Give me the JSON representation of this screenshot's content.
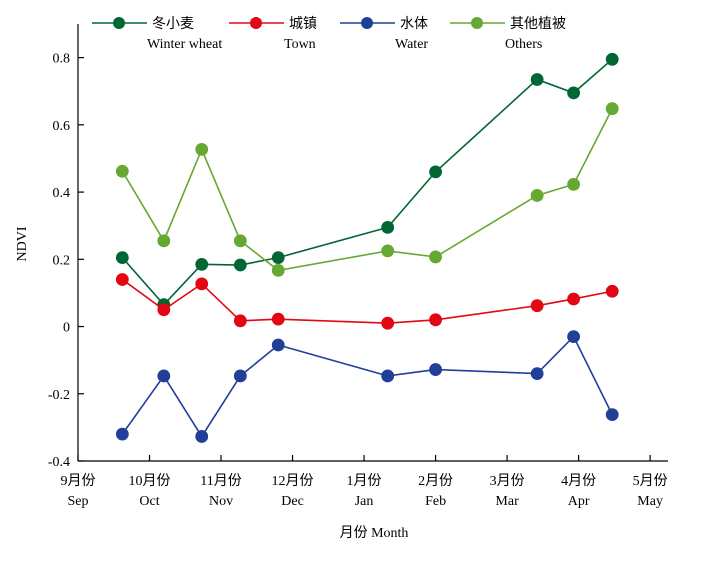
{
  "chart_data": {
    "type": "line",
    "xlabel": "月份 Month",
    "ylabel": "NDVI",
    "ylim": [
      -0.4,
      0.9
    ],
    "xlim": [
      0,
      8.25
    ],
    "yticks": [
      -0.4,
      -0.2,
      0,
      0.2,
      0.4,
      0.6,
      0.8
    ],
    "ytick_labels": [
      "-0.4",
      "-0.2",
      "0",
      "0.2",
      "0.4",
      "0.6",
      "0.8"
    ],
    "xticks": [
      {
        "value": 0,
        "cn": "9月份",
        "en": "Sep"
      },
      {
        "value": 1,
        "cn": "10月份",
        "en": "Oct"
      },
      {
        "value": 2,
        "cn": "11月份",
        "en": "Nov"
      },
      {
        "value": 3,
        "cn": "12月份",
        "en": "Dec"
      },
      {
        "value": 4,
        "cn": "1月份",
        "en": "Jan"
      },
      {
        "value": 5,
        "cn": "2月份",
        "en": "Feb"
      },
      {
        "value": 6,
        "cn": "3月份",
        "en": "Mar"
      },
      {
        "value": 7,
        "cn": "4月份",
        "en": "Apr"
      },
      {
        "value": 8,
        "cn": "5月份",
        "en": "May"
      }
    ],
    "x": [
      0.62,
      1.2,
      1.73,
      2.27,
      2.8,
      4.33,
      5.0,
      6.42,
      6.93,
      7.47
    ],
    "grid": false,
    "legend_position": "top",
    "series": [
      {
        "name_cn": "冬小麦",
        "name_en": "Winter wheat",
        "color": "#006633",
        "values": [
          0.205,
          0.065,
          0.185,
          0.183,
          0.205,
          0.295,
          0.46,
          0.735,
          0.695,
          0.795
        ]
      },
      {
        "name_cn": "城镇",
        "name_en": "Town",
        "color": "#e30613",
        "values": [
          0.14,
          0.05,
          0.127,
          0.017,
          0.022,
          0.01,
          0.02,
          0.062,
          0.082,
          0.105
        ]
      },
      {
        "name_cn": "水体",
        "name_en": "Water",
        "color": "#213f99",
        "values": [
          -0.32,
          -0.147,
          -0.327,
          -0.147,
          -0.055,
          -0.147,
          -0.128,
          -0.14,
          -0.03,
          -0.262
        ]
      },
      {
        "name_cn": "其他植被",
        "name_en": "Others",
        "color": "#66a832",
        "values": [
          0.462,
          0.255,
          0.527,
          0.255,
          0.167,
          0.225,
          0.207,
          0.39,
          0.423,
          0.648
        ]
      }
    ]
  }
}
